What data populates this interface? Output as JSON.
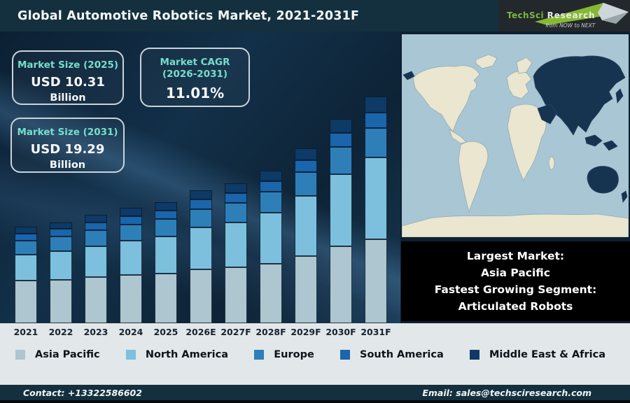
{
  "header": {
    "title": "Global Automotive Robotics Market, 2021-2031F",
    "logo": {
      "brand_primary": "TechSci ",
      "brand_secondary": "Research",
      "tagline": "from NOW to NEXT"
    }
  },
  "info_boxes": {
    "market_size_2025": {
      "title": "Market Size (2025)",
      "value": "USD 10.31",
      "unit": "Billion"
    },
    "market_cagr": {
      "title": "Market CAGR",
      "title_line2": "(2026-2031)",
      "value": "11.01%"
    },
    "market_size_2031": {
      "title": "Market Size (2031)",
      "value": "USD 19.29",
      "unit": "Billion"
    }
  },
  "chart_data": {
    "type": "bar",
    "stacked": true,
    "title": "Global Automotive Robotics Market, 2021-2031F",
    "unit": "USD Billion",
    "categories": [
      "2021",
      "2022",
      "2023",
      "2024",
      "2025",
      "2026E",
      "2027F",
      "2028F",
      "2029F",
      "2030F",
      "2031F"
    ],
    "series": [
      {
        "name": "Asia Pacific",
        "color": "#adc6d0",
        "values": [
          3.61,
          3.72,
          3.92,
          4.11,
          4.25,
          4.58,
          4.74,
          5.08,
          5.72,
          6.56,
          7.14
        ]
      },
      {
        "name": "North America",
        "color": "#7cc0de",
        "values": [
          2.21,
          2.4,
          2.65,
          2.91,
          3.15,
          3.56,
          3.86,
          4.33,
          5.1,
          6.11,
          6.94
        ]
      },
      {
        "name": "Europe",
        "color": "#2e7fb8",
        "values": [
          1.21,
          1.26,
          1.33,
          1.4,
          1.46,
          1.58,
          1.65,
          1.78,
          2.01,
          2.32,
          2.55
        ]
      },
      {
        "name": "South America",
        "color": "#1a65ab",
        "values": [
          0.61,
          0.63,
          0.67,
          0.71,
          0.74,
          0.8,
          0.84,
          0.91,
          1.03,
          1.19,
          1.31
        ]
      },
      {
        "name": "Middle East & Africa",
        "color": "#0d3a66",
        "values": [
          0.56,
          0.59,
          0.63,
          0.67,
          0.71,
          0.78,
          0.81,
          0.9,
          1.04,
          1.22,
          1.35
        ]
      }
    ],
    "totals": [
      8.2,
      8.6,
      9.2,
      9.8,
      10.31,
      11.3,
      11.9,
      13.0,
      14.9,
      17.4,
      19.29
    ],
    "ylim": [
      0,
      20
    ],
    "grid": false,
    "y_axis_visible": false,
    "legend_position": "bottom"
  },
  "map": {
    "highlighted_region": "Asia Pacific",
    "land_color": "#eae6cf",
    "highlight_color": "#16334f",
    "ocean_color": "#a9c6d4"
  },
  "highlight_box": {
    "lines": [
      "Largest Market:",
      "Asia Pacific",
      "Fastest Growing Segment:",
      "Articulated Robots"
    ]
  },
  "footer": {
    "contact": "Contact: +13322586602",
    "email": "Email: sales@techsciresearch.com"
  }
}
